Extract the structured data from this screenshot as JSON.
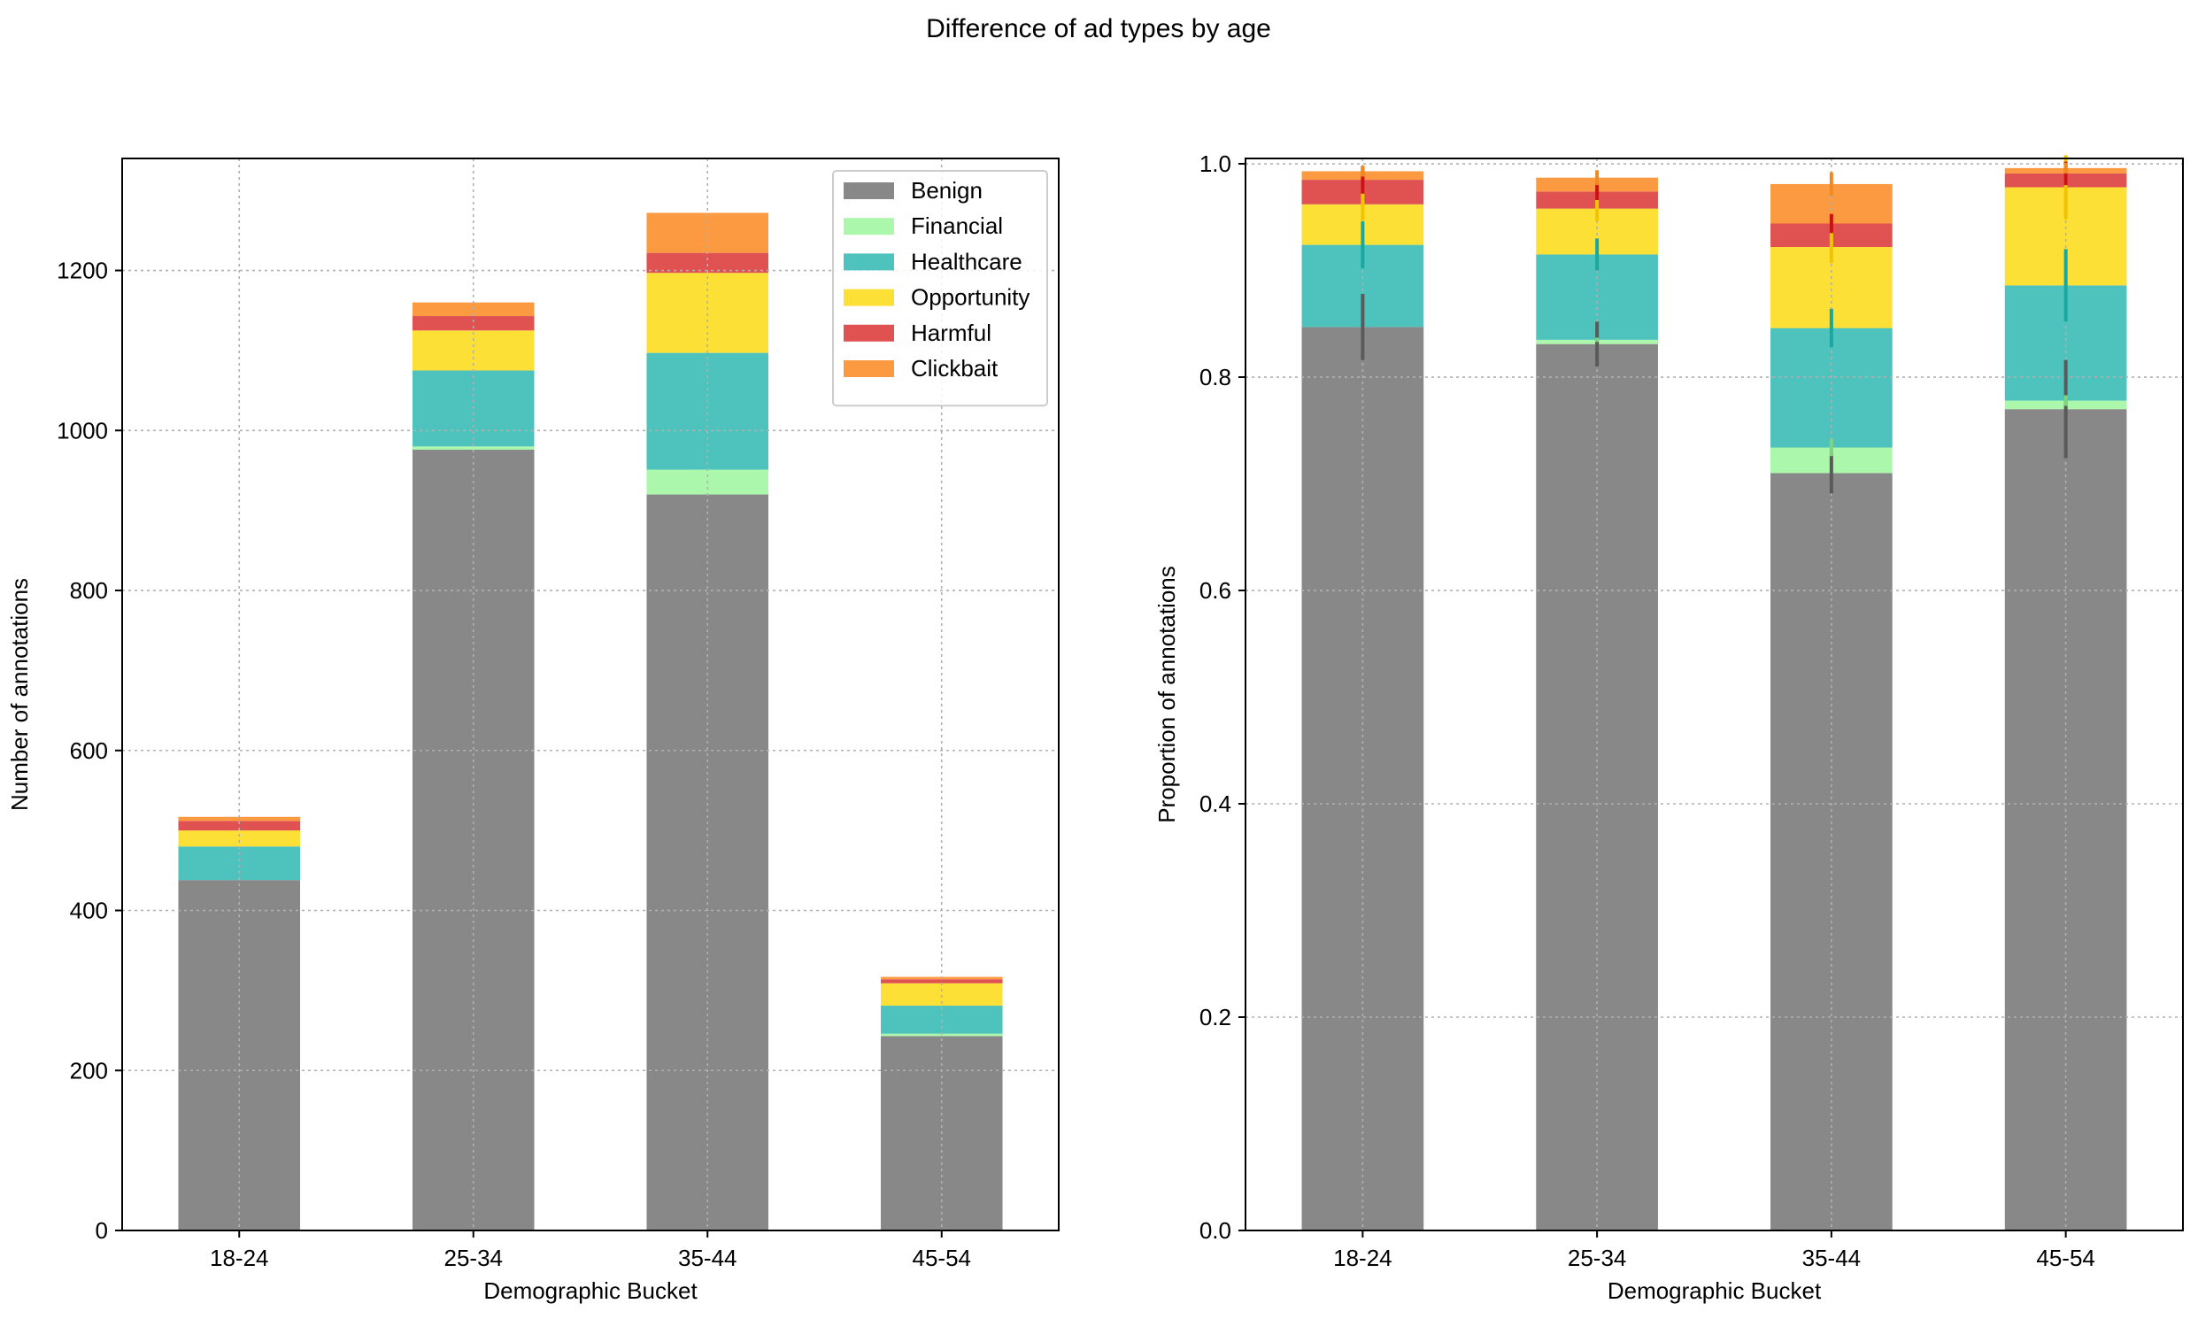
{
  "figure": {
    "title": "Difference of ad types by age"
  },
  "colors": {
    "Benign": "#888888",
    "Financial": "#abf7ab",
    "Healthcare": "#4ec2bc",
    "Opportunity": "#fde035",
    "Harmful": "#e05252",
    "Clickbait": "#fb9a40"
  },
  "chart_data": [
    {
      "type": "bar",
      "stacked": true,
      "categories": [
        "18-24",
        "25-34",
        "35-44",
        "45-54"
      ],
      "xlabel": "Demographic Bucket",
      "ylabel": "Number of annotations",
      "ylim": [
        0,
        1340
      ],
      "yticks": [
        0,
        200,
        400,
        600,
        800,
        1000,
        1200
      ],
      "ytick_labels": [
        "0",
        "200",
        "400",
        "600",
        "800",
        "1000",
        "1200"
      ],
      "grid": true,
      "legend": "top-right",
      "series": [
        {
          "name": "Benign",
          "values": [
            438,
            976,
            920,
            243
          ]
        },
        {
          "name": "Financial",
          "values": [
            0,
            4,
            31,
            3
          ]
        },
        {
          "name": "Healthcare",
          "values": [
            42,
            95,
            146,
            35
          ]
        },
        {
          "name": "Opportunity",
          "values": [
            20,
            50,
            100,
            28
          ]
        },
        {
          "name": "Harmful",
          "values": [
            12,
            18,
            25,
            5
          ]
        },
        {
          "name": "Clickbait",
          "values": [
            5,
            17,
            50,
            3
          ]
        }
      ]
    },
    {
      "type": "bar",
      "stacked": true,
      "categories": [
        "18-24",
        "25-34",
        "35-44",
        "45-54"
      ],
      "xlabel": "Demographic Bucket",
      "ylabel": "Proportion of annotations",
      "ylim": [
        0,
        1.005
      ],
      "yticks": [
        0,
        0.2,
        0.4,
        0.6,
        0.8,
        1.0
      ],
      "ytick_labels": [
        "0.0",
        "0.2",
        "0.4",
        "0.6",
        "0.8",
        "1.0"
      ],
      "grid": true,
      "error_bars": true,
      "series": [
        {
          "name": "Benign",
          "values": [
            0.847,
            0.831,
            0.71,
            0.77
          ],
          "error": [
            0.031,
            0.021,
            0.019,
            0.046
          ]
        },
        {
          "name": "Financial",
          "values": [
            0.0,
            0.004,
            0.024,
            0.008
          ],
          "error": [
            0.0,
            0.002,
            0.008,
            0.005
          ]
        },
        {
          "name": "Healthcare",
          "values": [
            0.077,
            0.08,
            0.112,
            0.108
          ],
          "error": [
            0.022,
            0.015,
            0.018,
            0.034
          ]
        },
        {
          "name": "Opportunity",
          "values": [
            0.038,
            0.043,
            0.076,
            0.092
          ],
          "error": [
            0.015,
            0.012,
            0.015,
            0.03
          ]
        },
        {
          "name": "Harmful",
          "values": [
            0.023,
            0.016,
            0.022,
            0.013
          ],
          "error": [
            0.013,
            0.008,
            0.009,
            0.011
          ]
        },
        {
          "name": "Clickbait",
          "values": [
            0.008,
            0.013,
            0.037,
            0.005
          ],
          "error": [
            0.005,
            0.007,
            0.011,
            0.005
          ]
        }
      ]
    }
  ]
}
